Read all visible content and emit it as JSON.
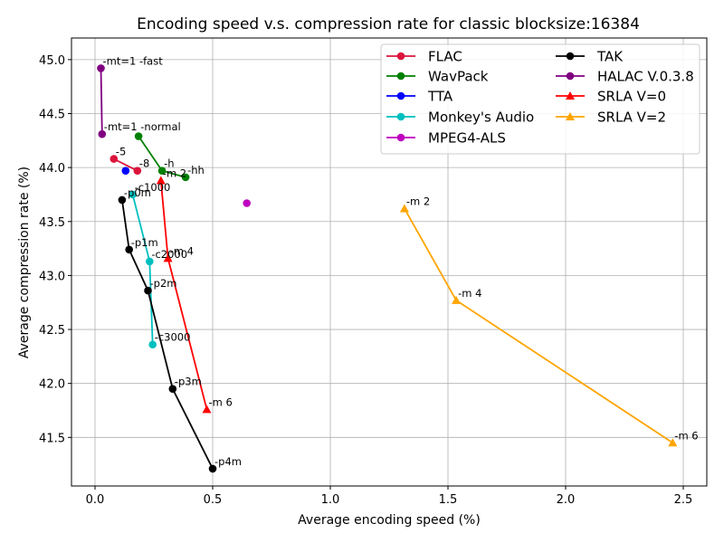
{
  "chart_data": {
    "type": "line",
    "title": "Encoding speed v.s. compression rate for classic blocksize:16384",
    "xlabel": "Average encoding speed (%)",
    "ylabel": "Average compression rate (%)",
    "xlim": [
      -0.1,
      2.6
    ],
    "ylim": [
      41.05,
      45.2
    ],
    "xticks": [
      0.0,
      0.5,
      1.0,
      1.5,
      2.0,
      2.5
    ],
    "xtick_labels": [
      "0.0",
      "0.5",
      "1.0",
      "1.5",
      "2.0",
      "2.5"
    ],
    "yticks": [
      41.5,
      42.0,
      42.5,
      43.0,
      43.5,
      44.0,
      44.5,
      45.0
    ],
    "ytick_labels": [
      "41.5",
      "42.0",
      "42.5",
      "43.0",
      "43.5",
      "44.0",
      "44.5",
      "45.0"
    ],
    "grid": true,
    "legend_position": "top-right",
    "series": [
      {
        "name": "FLAC",
        "color": "#dc143c",
        "marker": "circle",
        "points": [
          {
            "x": 0.08,
            "y": 44.08,
            "label": "-5"
          },
          {
            "x": 0.18,
            "y": 43.97,
            "label": "-8"
          }
        ]
      },
      {
        "name": "WavPack",
        "color": "#008000",
        "marker": "circle",
        "points": [
          {
            "x": 0.185,
            "y": 44.29,
            "label": ""
          },
          {
            "x": 0.285,
            "y": 43.97,
            "label": "-h"
          },
          {
            "x": 0.385,
            "y": 43.91,
            "label": "-hh"
          }
        ]
      },
      {
        "name": "TTA",
        "color": "#0000ff",
        "marker": "circle",
        "points": [
          {
            "x": 0.13,
            "y": 43.97,
            "label": ""
          }
        ]
      },
      {
        "name": "Monkey's Audio",
        "color": "#00bfbf",
        "marker": "circle",
        "points": [
          {
            "x": 0.16,
            "y": 43.75,
            "label": "-c1000"
          },
          {
            "x": 0.232,
            "y": 43.13,
            "label": "-c2000"
          },
          {
            "x": 0.245,
            "y": 42.36,
            "label": "-c3000"
          }
        ]
      },
      {
        "name": "MPEG4-ALS",
        "color": "#bf00bf",
        "marker": "circle",
        "points": [
          {
            "x": 0.645,
            "y": 43.67,
            "label": ""
          }
        ]
      },
      {
        "name": "TAK",
        "color": "#000000",
        "marker": "circle",
        "points": [
          {
            "x": 0.115,
            "y": 43.7,
            "label": "-p0m"
          },
          {
            "x": 0.145,
            "y": 43.24,
            "label": "-p1m"
          },
          {
            "x": 0.225,
            "y": 42.86,
            "label": "-p2m"
          },
          {
            "x": 0.33,
            "y": 41.95,
            "label": "-p3m"
          },
          {
            "x": 0.5,
            "y": 41.21,
            "label": "-p4m"
          }
        ]
      },
      {
        "name": "HALAC V.0.3.8",
        "color": "#800080",
        "marker": "circle",
        "points": [
          {
            "x": 0.025,
            "y": 44.92,
            "label": "-mt=1 -fast"
          },
          {
            "x": 0.03,
            "y": 44.31,
            "label": "-mt=1 -normal"
          }
        ]
      },
      {
        "name": "SRLA V=0",
        "color": "#ff0000",
        "marker": "triangle",
        "points": [
          {
            "x": 0.28,
            "y": 43.88,
            "label": "-m 2"
          },
          {
            "x": 0.31,
            "y": 43.16,
            "label": "-m 4"
          },
          {
            "x": 0.475,
            "y": 41.76,
            "label": "-m 6"
          }
        ]
      },
      {
        "name": "SRLA V=2",
        "color": "#ffa500",
        "marker": "triangle",
        "points": [
          {
            "x": 1.315,
            "y": 43.62,
            "label": "-m 2"
          },
          {
            "x": 1.535,
            "y": 42.77,
            "label": "-m 4"
          },
          {
            "x": 2.455,
            "y": 41.45,
            "label": "-m 6"
          }
        ]
      }
    ]
  }
}
